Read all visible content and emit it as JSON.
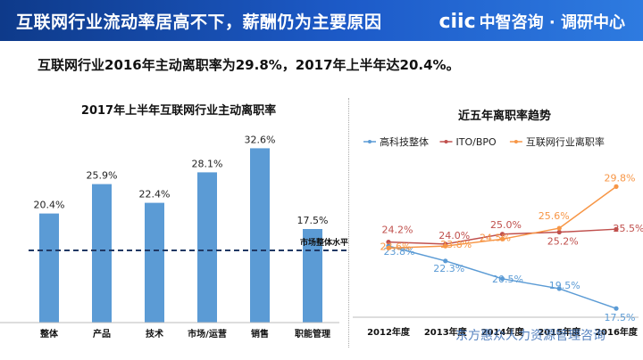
{
  "header": {
    "title": "互联网行业流动率居高不下，薪酬仍为主要原因",
    "logo_mark": "ciic",
    "logo_text": "中智咨询 · 调研中心"
  },
  "subtitle": "互联网行业2016年主动离职率为29.8%，2017年上半年达20.4%。",
  "footer_brand": "东方惠众人力资源管理咨询",
  "colors": {
    "bar": "#5b9bd5",
    "market_line": "#1f3864",
    "hightech": "#5b9bd5",
    "ito": "#c0504d",
    "internet": "#f79646"
  },
  "chart_data": [
    {
      "type": "bar",
      "title": "2017年上半年互联网行业主动离职率",
      "categories": [
        "整体",
        "产品",
        "技术",
        "市场/运营",
        "销售",
        "职能管理"
      ],
      "values": [
        20.4,
        25.9,
        22.4,
        28.1,
        32.6,
        17.5
      ],
      "value_labels": [
        "20.4%",
        "25.9%",
        "22.4%",
        "28.1%",
        "32.6%",
        "17.5%"
      ],
      "reference_line": {
        "label": "市场整体水平线",
        "value": 13.5
      },
      "ylim": [
        0,
        35
      ],
      "grid": false
    },
    {
      "type": "line",
      "title": "近五年离职率趋势",
      "legend_position": "top",
      "x": [
        "2012年度",
        "2013年度",
        "2014年度",
        "2015年度",
        "2016年度"
      ],
      "x_labels_visible": [
        "2012年度",
        "2013年度",
        "2014年度",
        "2015年度",
        "2016年度"
      ],
      "series": [
        {
          "name": "高科技整体",
          "values": [
            23.8,
            22.3,
            20.5,
            19.5,
            17.5
          ],
          "labels": [
            "23.8%",
            "22.3%",
            "20.5%",
            "19.5%",
            "17.5%"
          ]
        },
        {
          "name": "ITO/BPO",
          "values": [
            24.2,
            24.0,
            25.0,
            25.2,
            25.5
          ],
          "labels": [
            "24.2%",
            "24.0%",
            "25.0%",
            "25.2%",
            "25.5%"
          ]
        },
        {
          "name": "互联网行业离职率",
          "values": [
            23.6,
            23.8,
            24.5,
            25.6,
            29.8
          ],
          "labels": [
            "23.6%",
            "23.8%",
            "24.5%",
            "25.6%",
            "29.8%"
          ]
        }
      ],
      "ylim": [
        15,
        31
      ]
    }
  ]
}
